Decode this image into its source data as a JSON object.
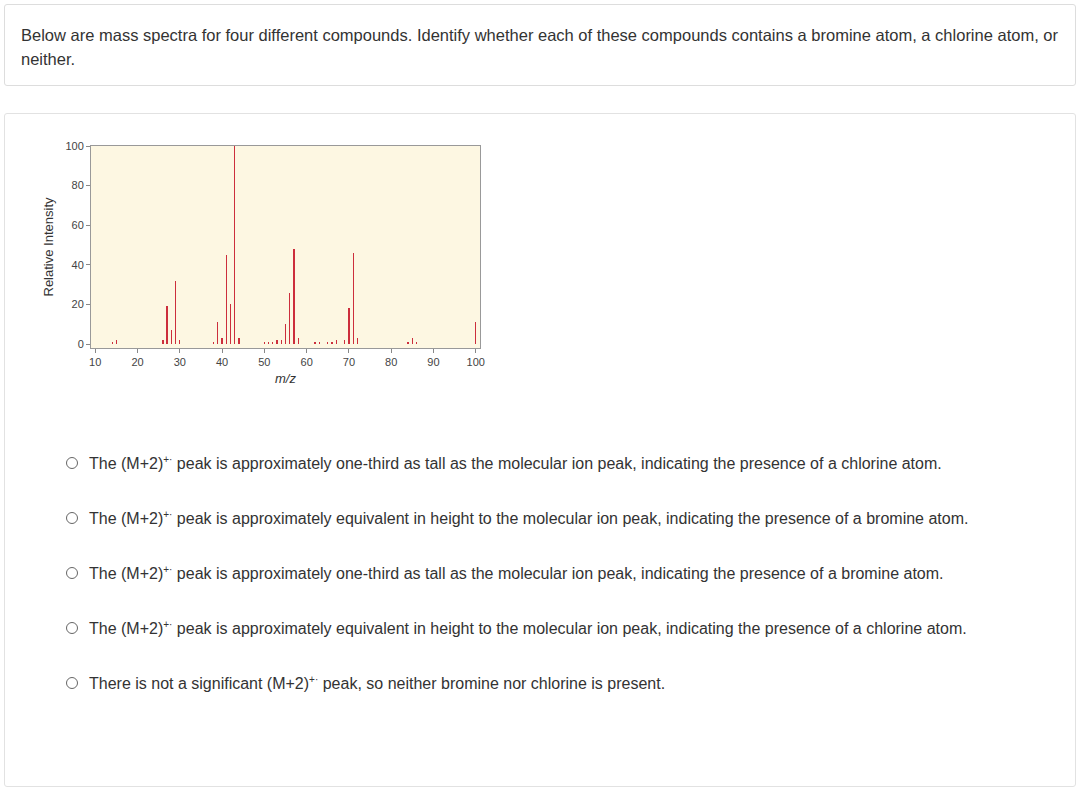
{
  "question": "Below are mass spectra for four different compounds. Identify whether each of these compounds contains a bromine atom, a chlorine atom, or neither.",
  "chart_data": {
    "type": "bar",
    "x_label": "m/z",
    "y_label": "Relative Intensity",
    "x": [
      14,
      15,
      26,
      27,
      28,
      29,
      30,
      38,
      39,
      40,
      41,
      42,
      43,
      44,
      50,
      51,
      52,
      53,
      54,
      55,
      56,
      57,
      58,
      62,
      63,
      65,
      66,
      67,
      69,
      70,
      71,
      72,
      84,
      85,
      86,
      100
    ],
    "values": [
      1,
      2,
      2,
      19,
      7,
      32,
      2,
      1,
      11,
      3,
      45,
      20,
      100,
      3,
      1,
      1,
      1,
      2,
      2,
      10,
      26,
      48,
      3,
      1,
      1,
      1,
      1,
      2,
      2,
      18,
      46,
      3,
      1,
      3,
      1,
      11
    ],
    "color": "#cc2e3c",
    "xlim": [
      9,
      101
    ],
    "xticks": [
      10,
      20,
      30,
      40,
      50,
      60,
      70,
      80,
      90,
      100
    ],
    "ylim": [
      -2,
      100
    ],
    "yticks": [
      0,
      20,
      40,
      60,
      80,
      100
    ],
    "grid": false
  },
  "options": [
    {
      "before": "The (M+2)",
      "sup": "+·",
      "after": " peak is approximately one-third as tall as the molecular ion peak, indicating the presence of a chlorine atom."
    },
    {
      "before": "The (M+2)",
      "sup": "+·",
      "after": " peak is approximately equivalent in height to the molecular ion peak, indicating the presence of a bromine atom."
    },
    {
      "before": "The (M+2)",
      "sup": "+·",
      "after": " peak is approximately one-third as tall as the molecular ion peak, indicating the presence of a bromine atom."
    },
    {
      "before": "The (M+2)",
      "sup": "+·",
      "after": " peak is approximately equivalent in height to the molecular ion peak, indicating the presence of a chlorine atom."
    },
    {
      "before": "There is not a significant (M+2)",
      "sup": "+·",
      "after": " peak, so neither bromine nor chlorine is present."
    }
  ]
}
